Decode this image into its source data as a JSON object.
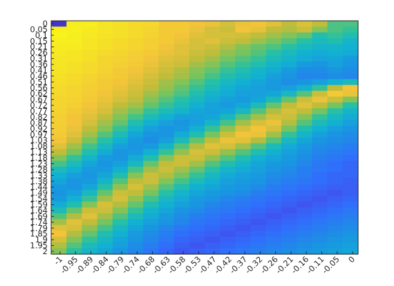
{
  "chart_data": {
    "type": "heatmap",
    "title": "",
    "xlabel": "",
    "ylabel": "",
    "x_ticks": [
      "-1",
      "-0.95",
      "-0.89",
      "-0.84",
      "-0.79",
      "-0.74",
      "-0.68",
      "-0.63",
      "-0.58",
      "-0.53",
      "-0.47",
      "-0.42",
      "-0.37",
      "-0.32",
      "-0.26",
      "-0.21",
      "-0.16",
      "-0.11",
      "-0.05",
      "0"
    ],
    "y_ticks": [
      "0",
      "0.05",
      "0.1",
      "0.15",
      "0.21",
      "0.26",
      "0.31",
      "0.36",
      "0.41",
      "0.46",
      "0.51",
      "0.56",
      "0.62",
      "0.67",
      "0.72",
      "0.77",
      "0.82",
      "0.87",
      "0.92",
      "0.97",
      "1.03",
      "1.08",
      "1.13",
      "1.18",
      "1.23",
      "1.28",
      "1.33",
      "1.38",
      "1.44",
      "1.49",
      "1.54",
      "1.59",
      "1.64",
      "1.69",
      "1.74",
      "1.79",
      "1.85",
      "1.9",
      "1.95",
      "2"
    ],
    "xlim": [
      -1,
      0
    ],
    "ylim": [
      0,
      2
    ],
    "y_direction": "reverse",
    "colormap": "parula",
    "colormap_stops": [
      "#3e26a8",
      "#4746eb",
      "#2f6ffb",
      "#1a95e1",
      "#12b1d2",
      "#25c0a5",
      "#75c45f",
      "#c0bd3a",
      "#f3c43a",
      "#f5e028",
      "#f9fb15"
    ],
    "value_range": [
      0,
      1
    ],
    "grid": false,
    "legend": "none",
    "z": [
      [
        0.05,
        0.95,
        0.95,
        0.92,
        0.9,
        0.88,
        0.87,
        0.82,
        0.82,
        0.8,
        0.78,
        0.74,
        0.78,
        0.8,
        0.76,
        0.7,
        0.75,
        0.7,
        0.55,
        0.55
      ],
      [
        0.96,
        0.96,
        0.94,
        0.92,
        0.9,
        0.88,
        0.86,
        0.82,
        0.82,
        0.78,
        0.74,
        0.72,
        0.8,
        0.77,
        0.7,
        0.68,
        0.72,
        0.62,
        0.55,
        0.52
      ],
      [
        0.97,
        0.95,
        0.93,
        0.91,
        0.9,
        0.88,
        0.85,
        0.82,
        0.8,
        0.76,
        0.74,
        0.74,
        0.73,
        0.7,
        0.66,
        0.62,
        0.58,
        0.48,
        0.52,
        0.48
      ],
      [
        0.95,
        0.95,
        0.92,
        0.9,
        0.88,
        0.86,
        0.84,
        0.82,
        0.78,
        0.74,
        0.76,
        0.72,
        0.7,
        0.65,
        0.6,
        0.56,
        0.5,
        0.45,
        0.48,
        0.42
      ],
      [
        0.94,
        0.94,
        0.92,
        0.9,
        0.88,
        0.86,
        0.84,
        0.8,
        0.76,
        0.74,
        0.72,
        0.68,
        0.62,
        0.58,
        0.55,
        0.5,
        0.45,
        0.42,
        0.42,
        0.4
      ],
      [
        0.93,
        0.92,
        0.9,
        0.88,
        0.86,
        0.84,
        0.82,
        0.78,
        0.76,
        0.72,
        0.7,
        0.64,
        0.6,
        0.56,
        0.5,
        0.45,
        0.4,
        0.38,
        0.4,
        0.38
      ],
      [
        0.92,
        0.92,
        0.9,
        0.86,
        0.85,
        0.83,
        0.8,
        0.76,
        0.74,
        0.7,
        0.66,
        0.6,
        0.56,
        0.52,
        0.46,
        0.42,
        0.38,
        0.35,
        0.36,
        0.32
      ],
      [
        0.92,
        0.9,
        0.88,
        0.86,
        0.84,
        0.82,
        0.78,
        0.74,
        0.72,
        0.66,
        0.62,
        0.56,
        0.52,
        0.48,
        0.42,
        0.38,
        0.32,
        0.3,
        0.34,
        0.3
      ],
      [
        0.91,
        0.9,
        0.88,
        0.85,
        0.82,
        0.8,
        0.76,
        0.72,
        0.68,
        0.62,
        0.58,
        0.52,
        0.48,
        0.42,
        0.38,
        0.32,
        0.28,
        0.28,
        0.3,
        0.28
      ],
      [
        0.9,
        0.88,
        0.86,
        0.84,
        0.82,
        0.78,
        0.74,
        0.7,
        0.66,
        0.6,
        0.54,
        0.48,
        0.44,
        0.4,
        0.34,
        0.3,
        0.26,
        0.26,
        0.28,
        0.26
      ],
      [
        0.89,
        0.88,
        0.85,
        0.82,
        0.8,
        0.76,
        0.72,
        0.66,
        0.62,
        0.56,
        0.5,
        0.44,
        0.4,
        0.36,
        0.32,
        0.28,
        0.3,
        0.34,
        0.4,
        0.45
      ],
      [
        0.88,
        0.86,
        0.84,
        0.82,
        0.78,
        0.74,
        0.7,
        0.64,
        0.58,
        0.52,
        0.46,
        0.4,
        0.36,
        0.34,
        0.32,
        0.34,
        0.4,
        0.52,
        0.7,
        0.8
      ],
      [
        0.87,
        0.86,
        0.83,
        0.8,
        0.76,
        0.72,
        0.66,
        0.6,
        0.55,
        0.48,
        0.42,
        0.38,
        0.34,
        0.34,
        0.36,
        0.44,
        0.56,
        0.72,
        0.82,
        0.78
      ],
      [
        0.86,
        0.85,
        0.82,
        0.78,
        0.74,
        0.7,
        0.62,
        0.56,
        0.5,
        0.44,
        0.38,
        0.34,
        0.32,
        0.36,
        0.46,
        0.58,
        0.72,
        0.78,
        0.72,
        0.62
      ],
      [
        0.86,
        0.84,
        0.8,
        0.76,
        0.7,
        0.66,
        0.58,
        0.52,
        0.46,
        0.4,
        0.35,
        0.32,
        0.36,
        0.46,
        0.58,
        0.7,
        0.76,
        0.7,
        0.6,
        0.5
      ],
      [
        0.85,
        0.82,
        0.78,
        0.74,
        0.66,
        0.6,
        0.52,
        0.46,
        0.42,
        0.36,
        0.34,
        0.36,
        0.44,
        0.56,
        0.68,
        0.74,
        0.7,
        0.6,
        0.5,
        0.42
      ],
      [
        0.84,
        0.8,
        0.76,
        0.7,
        0.62,
        0.54,
        0.46,
        0.4,
        0.34,
        0.34,
        0.36,
        0.44,
        0.56,
        0.66,
        0.74,
        0.72,
        0.62,
        0.52,
        0.44,
        0.38
      ],
      [
        0.84,
        0.8,
        0.74,
        0.66,
        0.58,
        0.48,
        0.4,
        0.34,
        0.3,
        0.34,
        0.42,
        0.54,
        0.66,
        0.74,
        0.78,
        0.68,
        0.56,
        0.46,
        0.4,
        0.34
      ],
      [
        0.83,
        0.78,
        0.7,
        0.62,
        0.52,
        0.42,
        0.34,
        0.3,
        0.32,
        0.4,
        0.52,
        0.64,
        0.74,
        0.8,
        0.74,
        0.6,
        0.48,
        0.4,
        0.34,
        0.3
      ],
      [
        0.82,
        0.76,
        0.66,
        0.56,
        0.46,
        0.36,
        0.3,
        0.3,
        0.38,
        0.48,
        0.6,
        0.72,
        0.8,
        0.78,
        0.66,
        0.52,
        0.42,
        0.34,
        0.3,
        0.28
      ],
      [
        0.8,
        0.72,
        0.6,
        0.5,
        0.4,
        0.32,
        0.28,
        0.34,
        0.46,
        0.58,
        0.7,
        0.78,
        0.76,
        0.68,
        0.56,
        0.44,
        0.36,
        0.3,
        0.28,
        0.26
      ],
      [
        0.76,
        0.66,
        0.54,
        0.44,
        0.34,
        0.3,
        0.32,
        0.42,
        0.56,
        0.68,
        0.76,
        0.74,
        0.66,
        0.56,
        0.46,
        0.38,
        0.32,
        0.28,
        0.26,
        0.24
      ],
      [
        0.7,
        0.6,
        0.48,
        0.38,
        0.3,
        0.32,
        0.4,
        0.52,
        0.64,
        0.74,
        0.72,
        0.64,
        0.56,
        0.48,
        0.4,
        0.34,
        0.3,
        0.26,
        0.24,
        0.22
      ],
      [
        0.62,
        0.52,
        0.42,
        0.32,
        0.3,
        0.38,
        0.48,
        0.62,
        0.72,
        0.72,
        0.64,
        0.56,
        0.48,
        0.4,
        0.36,
        0.32,
        0.28,
        0.24,
        0.22,
        0.2
      ],
      [
        0.54,
        0.46,
        0.36,
        0.3,
        0.34,
        0.44,
        0.58,
        0.7,
        0.72,
        0.66,
        0.56,
        0.48,
        0.42,
        0.36,
        0.32,
        0.3,
        0.26,
        0.22,
        0.2,
        0.18
      ],
      [
        0.46,
        0.4,
        0.32,
        0.32,
        0.4,
        0.54,
        0.66,
        0.72,
        0.66,
        0.58,
        0.5,
        0.42,
        0.38,
        0.34,
        0.3,
        0.28,
        0.24,
        0.22,
        0.2,
        0.18
      ],
      [
        0.4,
        0.34,
        0.3,
        0.36,
        0.48,
        0.62,
        0.72,
        0.68,
        0.6,
        0.52,
        0.44,
        0.38,
        0.34,
        0.32,
        0.28,
        0.26,
        0.24,
        0.2,
        0.18,
        0.18
      ],
      [
        0.36,
        0.3,
        0.32,
        0.42,
        0.56,
        0.7,
        0.72,
        0.62,
        0.54,
        0.46,
        0.4,
        0.34,
        0.32,
        0.3,
        0.26,
        0.24,
        0.22,
        0.2,
        0.18,
        0.16
      ],
      [
        0.32,
        0.3,
        0.36,
        0.5,
        0.64,
        0.74,
        0.66,
        0.56,
        0.48,
        0.4,
        0.36,
        0.32,
        0.3,
        0.28,
        0.24,
        0.22,
        0.2,
        0.18,
        0.16,
        0.16
      ],
      [
        0.3,
        0.34,
        0.44,
        0.58,
        0.72,
        0.7,
        0.6,
        0.5,
        0.42,
        0.36,
        0.32,
        0.3,
        0.28,
        0.24,
        0.22,
        0.2,
        0.18,
        0.16,
        0.14,
        0.16
      ],
      [
        0.32,
        0.4,
        0.52,
        0.66,
        0.74,
        0.64,
        0.54,
        0.44,
        0.38,
        0.32,
        0.3,
        0.26,
        0.24,
        0.22,
        0.2,
        0.18,
        0.16,
        0.14,
        0.16,
        0.18
      ],
      [
        0.38,
        0.48,
        0.62,
        0.74,
        0.68,
        0.58,
        0.48,
        0.4,
        0.34,
        0.3,
        0.26,
        0.24,
        0.22,
        0.2,
        0.18,
        0.16,
        0.14,
        0.16,
        0.18,
        0.2
      ],
      [
        0.46,
        0.58,
        0.72,
        0.72,
        0.62,
        0.52,
        0.42,
        0.36,
        0.3,
        0.28,
        0.24,
        0.22,
        0.2,
        0.18,
        0.16,
        0.14,
        0.16,
        0.18,
        0.2,
        0.22
      ],
      [
        0.56,
        0.68,
        0.76,
        0.66,
        0.56,
        0.46,
        0.38,
        0.32,
        0.28,
        0.24,
        0.22,
        0.2,
        0.18,
        0.16,
        0.14,
        0.16,
        0.18,
        0.2,
        0.22,
        0.24
      ],
      [
        0.66,
        0.76,
        0.7,
        0.6,
        0.5,
        0.4,
        0.34,
        0.3,
        0.26,
        0.22,
        0.2,
        0.18,
        0.16,
        0.14,
        0.16,
        0.18,
        0.2,
        0.22,
        0.24,
        0.26
      ],
      [
        0.76,
        0.74,
        0.64,
        0.54,
        0.44,
        0.36,
        0.3,
        0.26,
        0.22,
        0.2,
        0.18,
        0.16,
        0.14,
        0.16,
        0.18,
        0.2,
        0.22,
        0.24,
        0.26,
        0.28
      ],
      [
        0.8,
        0.68,
        0.58,
        0.48,
        0.4,
        0.32,
        0.28,
        0.24,
        0.2,
        0.18,
        0.16,
        0.14,
        0.16,
        0.18,
        0.2,
        0.22,
        0.24,
        0.26,
        0.28,
        0.3
      ],
      [
        0.74,
        0.62,
        0.52,
        0.44,
        0.36,
        0.3,
        0.26,
        0.22,
        0.18,
        0.16,
        0.14,
        0.16,
        0.18,
        0.2,
        0.22,
        0.24,
        0.26,
        0.28,
        0.3,
        0.32
      ],
      [
        0.68,
        0.56,
        0.46,
        0.4,
        0.34,
        0.28,
        0.24,
        0.2,
        0.16,
        0.14,
        0.16,
        0.18,
        0.2,
        0.22,
        0.24,
        0.26,
        0.28,
        0.3,
        0.32,
        0.34
      ],
      [
        0.62,
        0.5,
        0.42,
        0.36,
        0.3,
        0.26,
        0.22,
        0.18,
        0.14,
        0.16,
        0.18,
        0.2,
        0.22,
        0.24,
        0.26,
        0.28,
        0.3,
        0.32,
        0.34,
        0.36
      ]
    ]
  }
}
